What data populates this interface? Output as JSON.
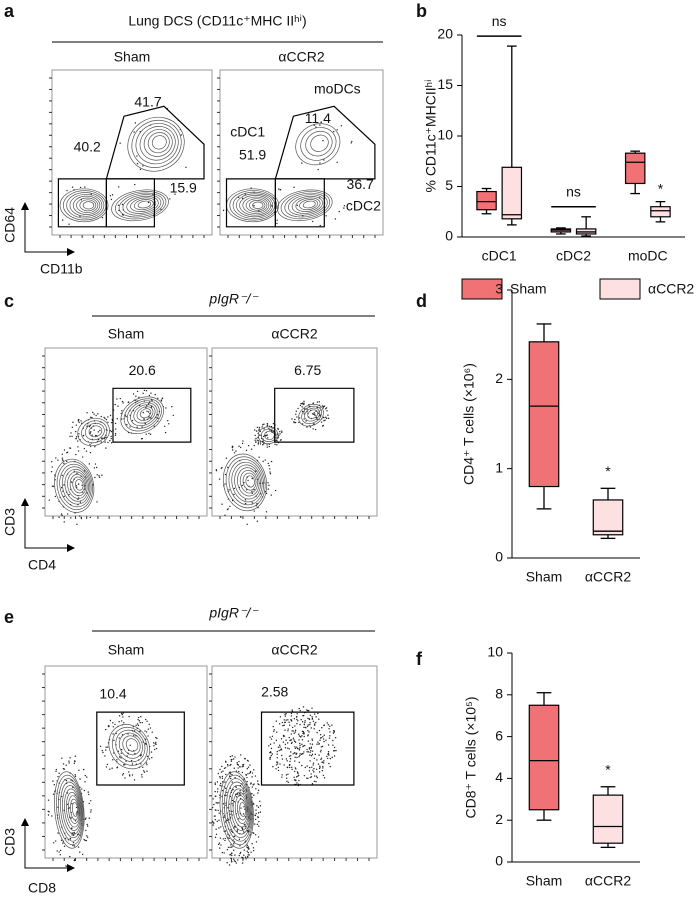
{
  "panel_labels": [
    "a",
    "b",
    "c",
    "d",
    "e",
    "f"
  ],
  "flow_panels": [
    {
      "header": "Lung DCS (CD11c⁺MHC IIʰⁱ)",
      "header_italic": false,
      "xlabel": "CD11b",
      "ylabel": "CD64",
      "plots": [
        {
          "condition": "Sham",
          "gates": [
            41.7,
            40.2,
            15.9
          ]
        },
        {
          "condition": "αCCR2",
          "gates": [
            11.4,
            51.9,
            36.7
          ],
          "populations": [
            "moDCs",
            "cDC1",
            "cDC2"
          ],
          "population_color": "#e02020"
        }
      ]
    },
    {
      "header": "pIgR⁻/⁻",
      "header_italic": true,
      "xlabel": "CD4",
      "ylabel": "CD3",
      "plots": [
        {
          "condition": "Sham",
          "gates": [
            20.6
          ]
        },
        {
          "condition": "αCCR2",
          "gates": [
            6.75
          ]
        }
      ]
    },
    {
      "header": "pIgR⁻/⁻",
      "header_italic": true,
      "xlabel": "CD8",
      "ylabel": "CD3",
      "plots": [
        {
          "condition": "Sham",
          "gates": [
            10.4
          ]
        },
        {
          "condition": "αCCR2",
          "gates": [
            2.58
          ]
        }
      ]
    }
  ],
  "chart_data": [
    {
      "type": "box",
      "ylabel": "% CD11c⁺MHCIIʰⁱ",
      "ylim": [
        0,
        20
      ],
      "yticks": [
        0,
        5,
        10,
        15,
        20
      ],
      "categories": [
        "cDC1",
        "cDC2",
        "moDC"
      ],
      "significance": [
        "ns",
        "ns",
        "*"
      ],
      "legend": "bottom",
      "series": [
        {
          "name": "Sham",
          "color": "#f07275",
          "values": [
            {
              "min": 2.3,
              "q1": 2.7,
              "median": 3.5,
              "q3": 4.5,
              "max": 4.8
            },
            {
              "min": 0.3,
              "q1": 0.5,
              "median": 0.7,
              "q3": 0.8,
              "max": 0.9
            },
            {
              "min": 4.3,
              "q1": 5.3,
              "median": 7.4,
              "q3": 8.3,
              "max": 8.5
            }
          ]
        },
        {
          "name": "αCCR2",
          "color": "#fde0e2",
          "values": [
            {
              "min": 1.2,
              "q1": 1.8,
              "median": 2.2,
              "q3": 6.9,
              "max": 18.9
            },
            {
              "min": 0.1,
              "q1": 0.3,
              "median": 0.5,
              "q3": 0.8,
              "max": 2.0
            },
            {
              "min": 1.5,
              "q1": 2.0,
              "median": 2.6,
              "q3": 3.0,
              "max": 3.5
            }
          ]
        }
      ]
    },
    {
      "type": "box",
      "ylabel": "CD4⁺ T cells (×10⁶)",
      "ylim": [
        0,
        3
      ],
      "yticks": [
        0,
        1,
        2,
        3
      ],
      "categories": [
        "Sham",
        "αCCR2"
      ],
      "significance": [
        null,
        "*"
      ],
      "colors": [
        "#f07275",
        "#fde0e2"
      ],
      "values": [
        {
          "min": 0.55,
          "q1": 0.8,
          "median": 1.7,
          "q3": 2.42,
          "max": 2.62
        },
        {
          "min": 0.22,
          "q1": 0.26,
          "median": 0.3,
          "q3": 0.65,
          "max": 0.78
        }
      ]
    },
    {
      "type": "box",
      "ylabel": "CD8⁺ T cells (×10⁵)",
      "ylim": [
        0,
        10
      ],
      "yticks": [
        0,
        2,
        4,
        6,
        8,
        10
      ],
      "categories": [
        "Sham",
        "αCCR2"
      ],
      "significance": [
        null,
        "*"
      ],
      "colors": [
        "#f07275",
        "#fde0e2"
      ],
      "values": [
        {
          "min": 2.0,
          "q1": 2.5,
          "median": 4.85,
          "q3": 7.5,
          "max": 8.1
        },
        {
          "min": 0.7,
          "q1": 0.9,
          "median": 1.7,
          "q3": 3.2,
          "max": 3.6
        }
      ]
    }
  ]
}
